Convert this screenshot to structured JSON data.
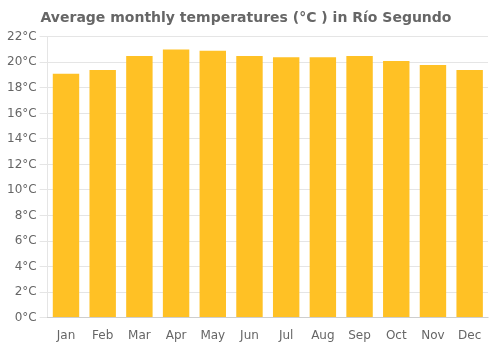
{
  "chart_data": {
    "type": "bar",
    "title": "Average monthly temperatures (°C ) in Río Segundo",
    "categories": [
      "Jan",
      "Feb",
      "Mar",
      "Apr",
      "May",
      "Jun",
      "Jul",
      "Aug",
      "Sep",
      "Oct",
      "Nov",
      "Dec"
    ],
    "values": [
      19.1,
      19.4,
      20.5,
      21.0,
      20.9,
      20.5,
      20.4,
      20.4,
      20.5,
      20.1,
      19.8,
      19.4
    ],
    "color": "#FFC125",
    "ylim": [
      0,
      22
    ],
    "yticks": [
      {
        "value": 0,
        "label": "0°C"
      },
      {
        "value": 2,
        "label": "2°C"
      },
      {
        "value": 4,
        "label": "4°C"
      },
      {
        "value": 6,
        "label": "6°C"
      },
      {
        "value": 8,
        "label": "8°C"
      },
      {
        "value": 10,
        "label": "10°C"
      },
      {
        "value": 12,
        "label": "12°C"
      },
      {
        "value": 14,
        "label": "14°C"
      },
      {
        "value": 16,
        "label": "16°C"
      },
      {
        "value": 18,
        "label": "18°C"
      },
      {
        "value": 20,
        "label": "20°C"
      },
      {
        "value": 22,
        "label": "22°C"
      }
    ],
    "grid": true
  }
}
